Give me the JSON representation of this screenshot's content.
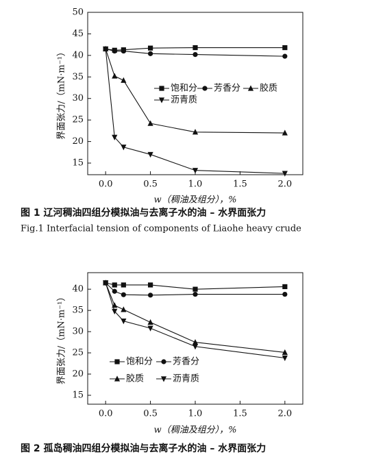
{
  "chart_data": [
    {
      "type": "line",
      "caption": "图 1   辽河稠油四组分模拟油与去离子水的油 – 水界面张力",
      "caption_en": "Fig.1    Interfacial tension of components of Liaohe heavy crude",
      "x_label": "w（稠油及组分），%",
      "y_label": "界面张力/（mN·m⁻¹）",
      "x": [
        0,
        0.1,
        0.2,
        0.5,
        1.0,
        2.0
      ],
      "series": [
        {
          "name": "饱和分",
          "marker": "square",
          "color": "#111",
          "values": [
            41.5,
            41.2,
            41.3,
            41.7,
            41.8,
            41.8
          ]
        },
        {
          "name": "芳香分",
          "marker": "circle",
          "color": "#111",
          "values": [
            41.5,
            41.0,
            41.0,
            40.4,
            40.2,
            39.8
          ]
        },
        {
          "name": "胶质",
          "marker": "triangle-up",
          "color": "#111",
          "values": [
            41.5,
            35.2,
            34.2,
            24.2,
            22.2,
            22.0
          ]
        },
        {
          "name": "沥青质",
          "marker": "triangle-down",
          "color": "#111",
          "values": [
            41.5,
            21.0,
            18.7,
            17.0,
            13.3,
            12.6
          ]
        }
      ],
      "xlim": [
        -0.2,
        2.2
      ],
      "ylim": [
        12.3,
        50
      ],
      "xticks": [
        {
          "value": 0,
          "label": "0.0"
        },
        {
          "value": 0.5,
          "label": "0.5"
        },
        {
          "value": 1,
          "label": "1.0"
        },
        {
          "value": 1.5,
          "label": "1.5"
        },
        {
          "value": 2,
          "label": "2.0"
        }
      ],
      "yticks": [
        15,
        20,
        25,
        30,
        35,
        40,
        45,
        50
      ]
    },
    {
      "type": "line",
      "caption": "图 2   孤岛稠油四组分模拟油与去离子水的油 – 水界面张力",
      "x_label": "w（稠油及组分），%",
      "y_label": "界面张力/（mN·m⁻¹）",
      "x": [
        0,
        0.1,
        0.2,
        0.5,
        1.0,
        2.0
      ],
      "series": [
        {
          "name": "饱和分",
          "marker": "square",
          "color": "#111",
          "values": [
            41.5,
            41.0,
            41.0,
            41.0,
            40.0,
            40.6
          ]
        },
        {
          "name": "芳香分",
          "marker": "circle",
          "color": "#111",
          "values": [
            41.5,
            39.5,
            38.7,
            38.6,
            38.8,
            38.8
          ]
        },
        {
          "name": "胶质",
          "marker": "triangle-up",
          "color": "#111",
          "values": [
            41.5,
            36.2,
            35.2,
            32.2,
            27.5,
            25.1
          ]
        },
        {
          "name": "沥青质",
          "marker": "triangle-down",
          "color": "#111",
          "values": [
            41.5,
            34.8,
            32.5,
            30.8,
            26.5,
            23.8
          ]
        }
      ],
      "xlim": [
        -0.2,
        2.2
      ],
      "ylim": [
        12.9,
        43.9
      ],
      "xticks": [
        {
          "value": 0,
          "label": "0.0"
        },
        {
          "value": 0.5,
          "label": "0.5"
        },
        {
          "value": 1,
          "label": "1.0"
        },
        {
          "value": 1.5,
          "label": "1.5"
        },
        {
          "value": 2,
          "label": "2.0"
        }
      ],
      "yticks": [
        15,
        20,
        25,
        30,
        35,
        40
      ]
    }
  ]
}
